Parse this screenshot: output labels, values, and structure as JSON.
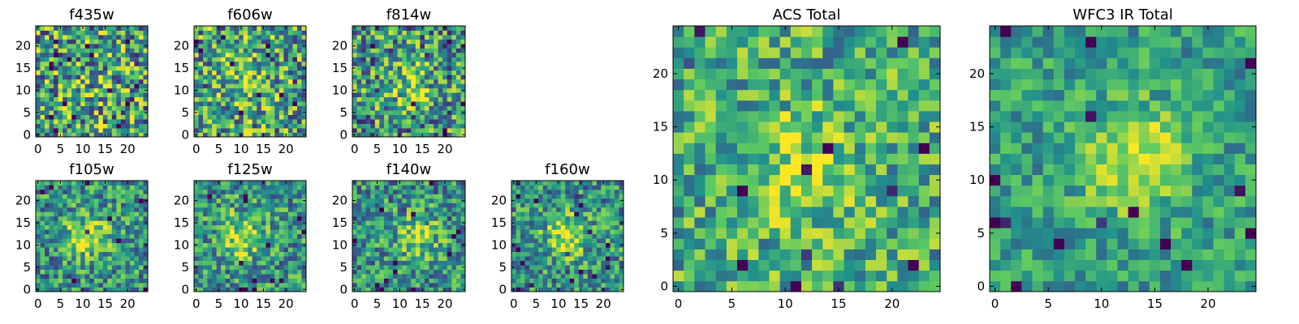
{
  "figure": {
    "colormap": "viridis",
    "colormap_stops": [
      "#440154",
      "#3b528b",
      "#21918c",
      "#5ec962",
      "#fde725"
    ],
    "noise_seed": 7
  },
  "chart_data": [
    {
      "type": "heatmap",
      "title": "f435w",
      "grid_size": 25,
      "x_ticks": [
        0,
        5,
        10,
        15,
        20
      ],
      "y_ticks": [
        0,
        5,
        10,
        15,
        20
      ],
      "xlim": [
        -0.5,
        24.5
      ],
      "ylim": [
        -0.5,
        24.5
      ],
      "signal": {
        "center": [
          12,
          12
        ],
        "strength": 0.05
      },
      "noise": 0.45,
      "base": 0.58
    },
    {
      "type": "heatmap",
      "title": "f606w",
      "grid_size": 25,
      "x_ticks": [
        0,
        5,
        10,
        15,
        20
      ],
      "y_ticks": [
        0,
        5,
        10,
        15,
        20
      ],
      "xlim": [
        -0.5,
        24.5
      ],
      "ylim": [
        -0.5,
        24.5
      ],
      "signal": {
        "center": [
          10,
          11
        ],
        "strength": 0.15
      },
      "noise": 0.42,
      "base": 0.58
    },
    {
      "type": "heatmap",
      "title": "f814w",
      "grid_size": 25,
      "x_ticks": [
        0,
        5,
        10,
        15,
        20
      ],
      "y_ticks": [
        0,
        5,
        10,
        15,
        20
      ],
      "xlim": [
        -0.5,
        24.5
      ],
      "ylim": [
        -0.5,
        24.5
      ],
      "signal": {
        "center": [
          12,
          11
        ],
        "strength": 0.3
      },
      "noise": 0.42,
      "base": 0.52
    },
    {
      "type": "heatmap",
      "title": "f105w",
      "grid_size": 25,
      "x_ticks": [
        0,
        5,
        10,
        15,
        20
      ],
      "y_ticks": [
        0,
        5,
        10,
        15,
        20
      ],
      "xlim": [
        -0.5,
        24.5
      ],
      "ylim": [
        -0.5,
        24.5
      ],
      "signal": {
        "center": [
          11,
          12
        ],
        "strength": 0.4
      },
      "noise": 0.32,
      "base": 0.5
    },
    {
      "type": "heatmap",
      "title": "f125w",
      "grid_size": 25,
      "x_ticks": [
        0,
        5,
        10,
        15,
        20
      ],
      "y_ticks": [
        0,
        5,
        10,
        15,
        20
      ],
      "xlim": [
        -0.5,
        24.5
      ],
      "ylim": [
        -0.5,
        24.5
      ],
      "signal": {
        "center": [
          10,
          12
        ],
        "strength": 0.35
      },
      "noise": 0.32,
      "base": 0.52
    },
    {
      "type": "heatmap",
      "title": "f140w",
      "grid_size": 25,
      "x_ticks": [
        0,
        5,
        10,
        15,
        20
      ],
      "y_ticks": [
        0,
        5,
        10,
        15,
        20
      ],
      "xlim": [
        -0.5,
        24.5
      ],
      "ylim": [
        -0.5,
        24.5
      ],
      "signal": {
        "center": [
          14,
          12
        ],
        "strength": 0.35
      },
      "noise": 0.32,
      "base": 0.5
    },
    {
      "type": "heatmap",
      "title": "f160w",
      "grid_size": 25,
      "x_ticks": [
        0,
        5,
        10,
        15,
        20
      ],
      "y_ticks": [
        0,
        5,
        10,
        15,
        20
      ],
      "xlim": [
        -0.5,
        24.5
      ],
      "ylim": [
        -0.5,
        24.5
      ],
      "signal": {
        "center": [
          12,
          12
        ],
        "strength": 0.4
      },
      "noise": 0.32,
      "base": 0.5
    },
    {
      "type": "heatmap",
      "title": "ACS Total",
      "grid_size": 25,
      "x_ticks": [
        0,
        5,
        10,
        15,
        20
      ],
      "y_ticks": [
        0,
        5,
        10,
        15,
        20
      ],
      "xlim": [
        -0.5,
        24.5
      ],
      "ylim": [
        -0.5,
        24.5
      ],
      "signal": {
        "center": [
          12,
          11
        ],
        "strength": 0.25
      },
      "noise": 0.3,
      "base": 0.62
    },
    {
      "type": "heatmap",
      "title": "WFC3 IR Total",
      "grid_size": 25,
      "x_ticks": [
        0,
        5,
        10,
        15,
        20
      ],
      "y_ticks": [
        0,
        5,
        10,
        15,
        20
      ],
      "xlim": [
        -0.5,
        24.5
      ],
      "ylim": [
        -0.5,
        24.5
      ],
      "signal": {
        "center": [
          13,
          12
        ],
        "strength": 0.4
      },
      "noise": 0.22,
      "base": 0.55
    }
  ]
}
